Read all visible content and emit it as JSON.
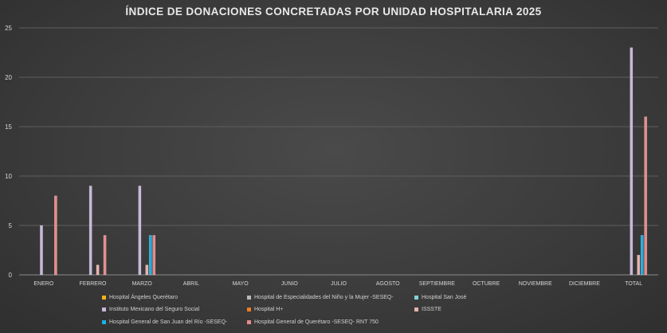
{
  "chart_data": {
    "type": "bar",
    "title": "ÍNDICE DE DONACIONES CONCRETADAS POR UNIDAD HOSPITALARIA 2025",
    "categories": [
      "ENERO",
      "FEBRERO",
      "MARZO",
      "ABRIL",
      "MAYO",
      "JUNIO",
      "JULIO",
      "AGOSTO",
      "SEPTIEMBRE",
      "OCTUBRE",
      "NOVIEMBRE",
      "DICIEMBRE",
      "TOTAL"
    ],
    "ylim": [
      0,
      25
    ],
    "yticks": [
      0,
      5,
      10,
      15,
      20,
      25
    ],
    "grid": true,
    "legend_position": "bottom",
    "series": [
      {
        "name": "Hospital Ángeles Querétaro",
        "color": "#f2b21b",
        "values": [
          0,
          0,
          0,
          0,
          0,
          0,
          0,
          0,
          0,
          0,
          0,
          0,
          0
        ]
      },
      {
        "name": "Hospital de Especialidades del Niño y la Mujer -SESEQ-",
        "color": "#b8b8b8",
        "values": [
          0,
          0,
          0,
          0,
          0,
          0,
          0,
          0,
          0,
          0,
          0,
          0,
          0
        ]
      },
      {
        "name": "Hospital San José",
        "color": "#7fd3de",
        "values": [
          0,
          0,
          0,
          0,
          0,
          0,
          0,
          0,
          0,
          0,
          0,
          0,
          0
        ]
      },
      {
        "name": "Instituto Mexicano del Seguro Social",
        "color": "#c6b8dc",
        "values": [
          5,
          9,
          9,
          0,
          0,
          0,
          0,
          0,
          0,
          0,
          0,
          0,
          23
        ]
      },
      {
        "name": "Hospital H+",
        "color": "#ee7d22",
        "values": [
          0,
          0,
          0,
          0,
          0,
          0,
          0,
          0,
          0,
          0,
          0,
          0,
          0
        ]
      },
      {
        "name": "ISSSTE",
        "color": "#e9b3ad",
        "values": [
          0,
          1,
          1,
          0,
          0,
          0,
          0,
          0,
          0,
          0,
          0,
          0,
          2
        ]
      },
      {
        "name": "Hospital General de San Juan del Río -SESEQ-",
        "color": "#1ab0e6",
        "values": [
          0,
          0,
          4,
          0,
          0,
          0,
          0,
          0,
          0,
          0,
          0,
          0,
          4
        ]
      },
      {
        "name": "Hospital General de Querétaro -SESEQ- RNT 750",
        "color": "#e88a8a",
        "values": [
          8,
          4,
          4,
          0,
          0,
          0,
          0,
          0,
          0,
          0,
          0,
          0,
          16
        ]
      }
    ]
  }
}
